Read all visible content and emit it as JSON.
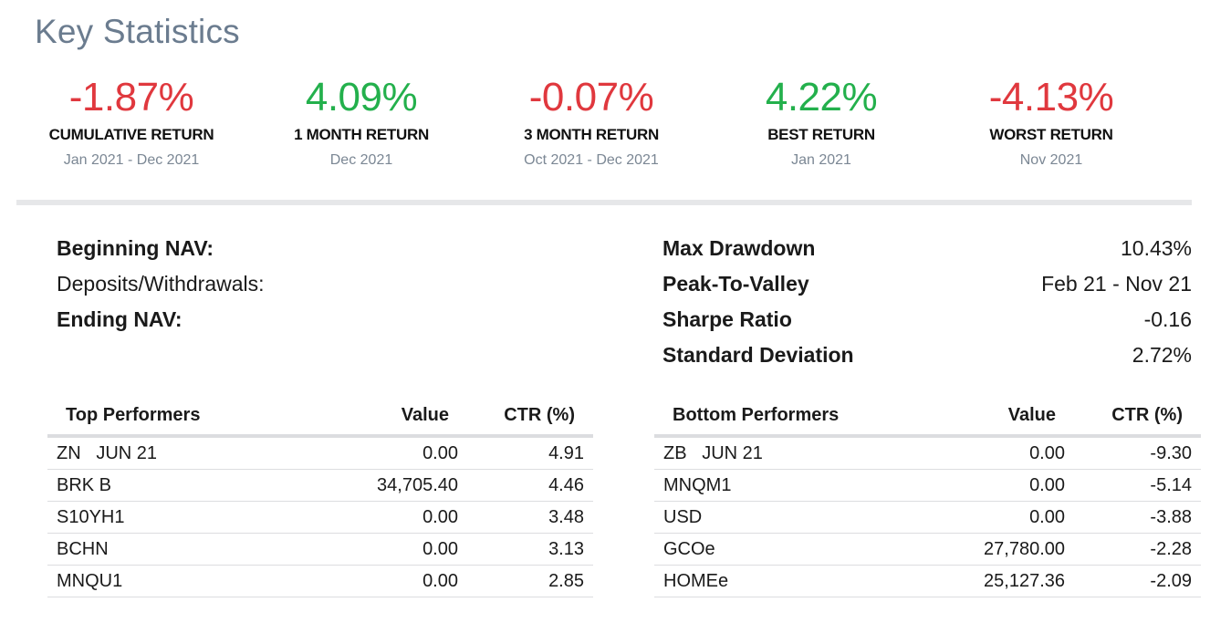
{
  "page_title": "Key Statistics",
  "kpis": [
    {
      "value": "-1.87%",
      "label": "CUMULATIVE RETURN",
      "period": "Jan 2021 - Dec 2021",
      "tone": "neg"
    },
    {
      "value": "4.09%",
      "label": "1 MONTH RETURN",
      "period": "Dec 2021",
      "tone": "pos"
    },
    {
      "value": "-0.07%",
      "label": "3 MONTH RETURN",
      "period": "Oct 2021 - Dec 2021",
      "tone": "neg"
    },
    {
      "value": "4.22%",
      "label": "BEST RETURN",
      "period": "Jan 2021",
      "tone": "pos"
    },
    {
      "value": "-4.13%",
      "label": "WORST RETURN",
      "period": "Nov 2021",
      "tone": "neg"
    }
  ],
  "colors": {
    "negative": "#e0383e",
    "positive": "#23b04c",
    "title": "#6b7c8f",
    "muted": "#7b8794",
    "rule": "#dcdde0"
  },
  "nav": {
    "beginning_label": "Beginning NAV:",
    "deposits_label": "Deposits/Withdrawals:",
    "ending_label": "Ending NAV:"
  },
  "stats": [
    {
      "label": "Max Drawdown",
      "value": "10.43%"
    },
    {
      "label": "Peak-To-Valley",
      "value": "Feb 21 - Nov 21"
    },
    {
      "label": "Sharpe Ratio",
      "value": "-0.16"
    },
    {
      "label": "Standard Deviation",
      "value": "2.72%"
    }
  ],
  "top_performers": {
    "headers": {
      "name": "Top Performers",
      "value": "Value",
      "ctr": "CTR (%)"
    },
    "rows": [
      {
        "name": "ZN   JUN 21",
        "value": "0.00",
        "ctr": "4.91"
      },
      {
        "name": "BRK B",
        "value": "34,705.40",
        "ctr": "4.46"
      },
      {
        "name": "S10YH1",
        "value": "0.00",
        "ctr": "3.48"
      },
      {
        "name": "BCHN",
        "value": "0.00",
        "ctr": "3.13"
      },
      {
        "name": "MNQU1",
        "value": "0.00",
        "ctr": "2.85"
      }
    ]
  },
  "bottom_performers": {
    "headers": {
      "name": "Bottom Performers",
      "value": "Value",
      "ctr": "CTR (%)"
    },
    "rows": [
      {
        "name": "ZB   JUN 21",
        "value": "0.00",
        "ctr": "-9.30"
      },
      {
        "name": "MNQM1",
        "value": "0.00",
        "ctr": "-5.14"
      },
      {
        "name": "USD",
        "value": "0.00",
        "ctr": "-3.88"
      },
      {
        "name": "GCOe",
        "value": "27,780.00",
        "ctr": "-2.28"
      },
      {
        "name": "HOMEe",
        "value": "25,127.36",
        "ctr": "-2.09"
      }
    ]
  }
}
